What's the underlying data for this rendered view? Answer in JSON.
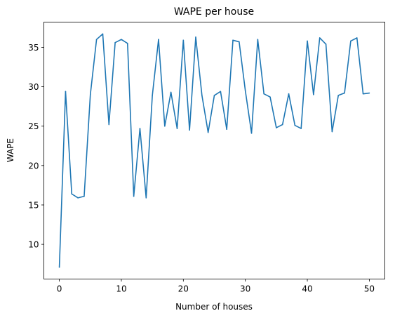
{
  "chart_data": {
    "type": "line",
    "title": "WAPE per house",
    "xlabel": "Number of houses",
    "ylabel": "WAPE",
    "xlim": [
      -2.5,
      52.5
    ],
    "ylim": [
      5.6,
      38.2
    ],
    "xticks": [
      0,
      10,
      20,
      30,
      40,
      50
    ],
    "yticks": [
      10,
      15,
      20,
      25,
      30,
      35
    ],
    "grid": false,
    "series": [
      {
        "color": "#1f77b4",
        "x": [
          0,
          1,
          2,
          3,
          4,
          5,
          6,
          7,
          8,
          9,
          10,
          11,
          12,
          13,
          14,
          15,
          16,
          17,
          18,
          19,
          20,
          21,
          22,
          23,
          24,
          25,
          26,
          27,
          28,
          29,
          30,
          31,
          32,
          33,
          34,
          35,
          36,
          37,
          38,
          39,
          40,
          41,
          42,
          43,
          44,
          45,
          46,
          47,
          48,
          49,
          50
        ],
        "values": [
          7.1,
          29.4,
          16.4,
          15.9,
          16.1,
          29.0,
          36.0,
          36.7,
          25.2,
          35.6,
          36.0,
          35.5,
          16.1,
          24.7,
          15.9,
          28.9,
          36.0,
          25.0,
          29.3,
          24.7,
          35.9,
          24.5,
          36.3,
          28.9,
          24.2,
          28.9,
          29.4,
          24.6,
          35.9,
          35.7,
          29.5,
          24.1,
          36.0,
          29.1,
          28.7,
          24.8,
          25.2,
          29.1,
          25.1,
          24.7,
          35.8,
          29.0,
          36.2,
          35.4,
          24.3,
          28.9,
          29.2,
          35.8,
          36.2,
          29.1,
          29.2
        ]
      }
    ]
  }
}
